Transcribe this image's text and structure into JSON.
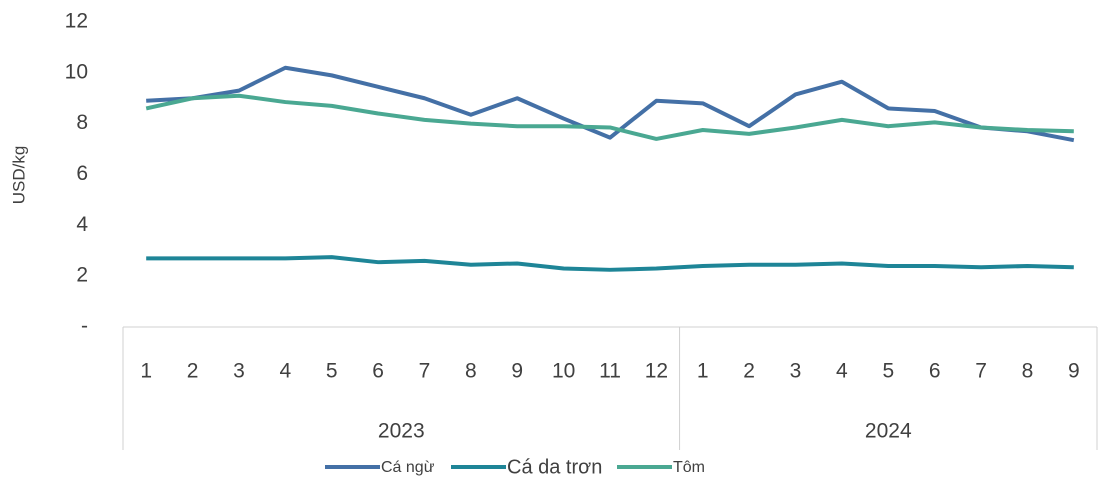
{
  "chart_data": {
    "type": "line",
    "y_label": "USD/kg",
    "category_groups": [
      {
        "name": "2023",
        "categories": [
          "1",
          "2",
          "3",
          "4",
          "5",
          "6",
          "7",
          "8",
          "9",
          "10",
          "11",
          "12"
        ]
      },
      {
        "name": "2024",
        "categories": [
          "1",
          "2",
          "3",
          "4",
          "5",
          "6",
          "7",
          "8",
          "9"
        ]
      }
    ],
    "series": [
      {
        "name": "Cá ngừ",
        "color": "#4470a6",
        "values": [
          8.9,
          9.0,
          9.3,
          10.2,
          9.9,
          9.45,
          9.0,
          8.35,
          9.0,
          8.2,
          7.45,
          8.9,
          8.8,
          7.9,
          9.15,
          9.65,
          8.6,
          8.5,
          7.85,
          7.7,
          7.35
        ]
      },
      {
        "name": "Cá da trơn",
        "color": "#1e8597",
        "values": [
          2.7,
          2.7,
          2.7,
          2.7,
          2.75,
          2.55,
          2.6,
          2.45,
          2.5,
          2.3,
          2.25,
          2.3,
          2.4,
          2.45,
          2.45,
          2.5,
          2.4,
          2.4,
          2.35,
          2.4,
          2.35
        ]
      },
      {
        "name": "Tôm",
        "color": "#4aa892",
        "values": [
          8.6,
          9.0,
          9.1,
          8.85,
          8.7,
          8.4,
          8.15,
          8.0,
          7.9,
          7.9,
          7.85,
          7.4,
          7.75,
          7.6,
          7.85,
          8.15,
          7.9,
          8.05,
          7.85,
          7.75,
          7.7
        ]
      }
    ],
    "ylim": [
      0,
      12
    ],
    "yticks": [
      {
        "value": 0,
        "label": "-"
      },
      2,
      4,
      6,
      8,
      10,
      12
    ],
    "grid": false,
    "legend": "bottom"
  }
}
